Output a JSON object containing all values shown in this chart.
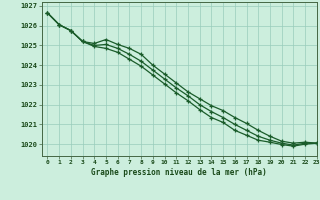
{
  "title": "Graphe pression niveau de la mer (hPa)",
  "bg_color": "#cceedd",
  "grid_color": "#99ccbb",
  "line_color": "#1a5c2a",
  "marker_color": "#1a5c2a",
  "xlim": [
    -0.5,
    23
  ],
  "ylim": [
    1019.4,
    1027.2
  ],
  "yticks": [
    1020,
    1021,
    1022,
    1023,
    1024,
    1025,
    1026,
    1027
  ],
  "xticks": [
    0,
    1,
    2,
    3,
    4,
    5,
    6,
    7,
    8,
    9,
    10,
    11,
    12,
    13,
    14,
    15,
    16,
    17,
    18,
    19,
    20,
    21,
    22,
    23
  ],
  "series": [
    [
      1026.65,
      1026.05,
      1025.75,
      1025.2,
      1025.1,
      1025.3,
      1025.05,
      1024.85,
      1024.55,
      1024.0,
      1023.55,
      1023.1,
      1022.65,
      1022.3,
      1021.95,
      1021.7,
      1021.35,
      1021.05,
      1020.7,
      1020.4,
      1020.15,
      1020.05,
      1020.1,
      1020.05
    ],
    [
      1026.65,
      1026.05,
      1025.75,
      1025.2,
      1025.0,
      1025.05,
      1024.85,
      1024.55,
      1024.2,
      1023.75,
      1023.3,
      1022.85,
      1022.45,
      1022.0,
      1021.65,
      1021.35,
      1021.0,
      1020.7,
      1020.4,
      1020.2,
      1020.05,
      1019.95,
      1020.05,
      1020.05
    ],
    [
      1026.65,
      1026.05,
      1025.75,
      1025.2,
      1024.95,
      1024.85,
      1024.65,
      1024.3,
      1023.95,
      1023.5,
      1023.05,
      1022.6,
      1022.2,
      1021.75,
      1021.35,
      1021.1,
      1020.7,
      1020.45,
      1020.2,
      1020.1,
      1019.98,
      1019.9,
      1020.0,
      1020.05
    ]
  ]
}
